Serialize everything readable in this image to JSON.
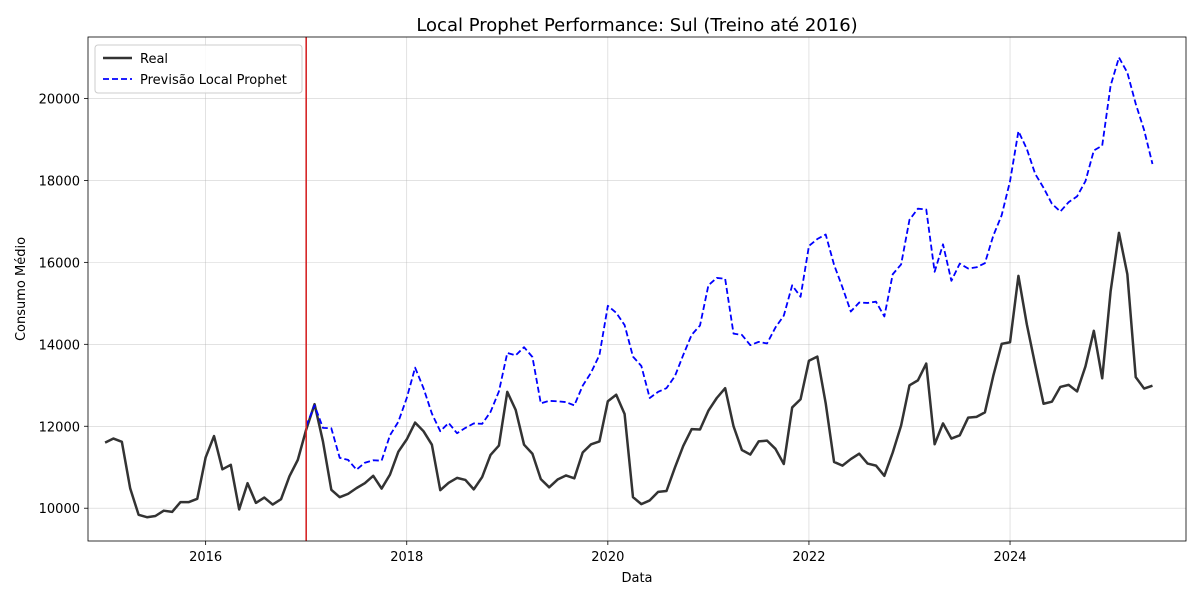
{
  "chart_data": {
    "type": "line",
    "title": "Local Prophet Performance: Sul (Treino até 2016)",
    "xlabel": "Data",
    "ylabel": "Consumo Médio",
    "xlim": [
      2014.83,
      2025.75
    ],
    "ylim": [
      9200,
      21500
    ],
    "x_ticks": [
      2016,
      2018,
      2020,
      2022,
      2024
    ],
    "y_ticks": [
      10000,
      12000,
      14000,
      16000,
      18000,
      20000
    ],
    "grid": true,
    "legend_position": "top-left",
    "vline": {
      "x": 2017.0,
      "color": "#d62728"
    },
    "series": [
      {
        "name": "Real",
        "color": "#333333",
        "style": "solid",
        "start": 2015.0,
        "step": 0.0833333,
        "values": [
          11600,
          11700,
          11620,
          10480,
          9840,
          9780,
          9810,
          9940,
          9910,
          10150,
          10150,
          10230,
          11240,
          11760,
          10950,
          11060,
          9970,
          10610,
          10130,
          10260,
          10090,
          10220,
          10780,
          11180,
          11920,
          12540,
          11630,
          10450,
          10270,
          10350,
          10490,
          10610,
          10790,
          10480,
          10820,
          11380,
          11680,
          12090,
          11880,
          11550,
          10440,
          10620,
          10740,
          10690,
          10460,
          10760,
          11300,
          11530,
          12840,
          12400,
          11550,
          11330,
          10710,
          10510,
          10700,
          10800,
          10730,
          11360,
          11560,
          11630,
          12610,
          12770,
          12300,
          10270,
          10100,
          10190,
          10400,
          10420,
          10990,
          11520,
          11930,
          11920,
          12380,
          12690,
          12930,
          12000,
          11420,
          11310,
          11630,
          11650,
          11450,
          11080,
          12460,
          12660,
          13600,
          13700,
          12560,
          11130,
          11040,
          11200,
          11330,
          11090,
          11040,
          10790,
          11360,
          12020,
          13000,
          13120,
          13530,
          11560,
          12070,
          11700,
          11780,
          12210,
          12230,
          12340,
          13230,
          14010,
          14050,
          15670,
          14490,
          13500,
          12550,
          12600,
          12960,
          13010,
          12850,
          13460,
          14330,
          13170,
          15290,
          16720,
          15710,
          13200,
          12920,
          12990
        ]
      },
      {
        "name": "Previsão Local Prophet",
        "color": "#0000ff",
        "style": "dashed",
        "start": 2017.0,
        "step": 0.0833333,
        "values": [
          12010,
          12510,
          11960,
          11950,
          11230,
          11180,
          10940,
          11110,
          11170,
          11160,
          11780,
          12110,
          12690,
          13430,
          12930,
          12310,
          11880,
          12080,
          11830,
          11960,
          12070,
          12060,
          12350,
          12850,
          13790,
          13730,
          13930,
          13690,
          12560,
          12620,
          12610,
          12590,
          12510,
          12990,
          13310,
          13740,
          14940,
          14770,
          14470,
          13700,
          13470,
          12690,
          12840,
          12930,
          13220,
          13740,
          14230,
          14460,
          15440,
          15620,
          15600,
          14260,
          14230,
          13980,
          14060,
          14020,
          14410,
          14700,
          15440,
          15160,
          16400,
          16570,
          16680,
          15940,
          15390,
          14800,
          15020,
          15010,
          15040,
          14680,
          15710,
          15950,
          17040,
          17310,
          17290,
          15770,
          16440,
          15550,
          15970,
          15850,
          15880,
          15980,
          16650,
          17150,
          17980,
          19200,
          18770,
          18160,
          17820,
          17430,
          17240,
          17470,
          17610,
          17980,
          18730,
          18850,
          20310,
          21000,
          20630,
          19870,
          19230,
          18400
        ]
      }
    ]
  }
}
